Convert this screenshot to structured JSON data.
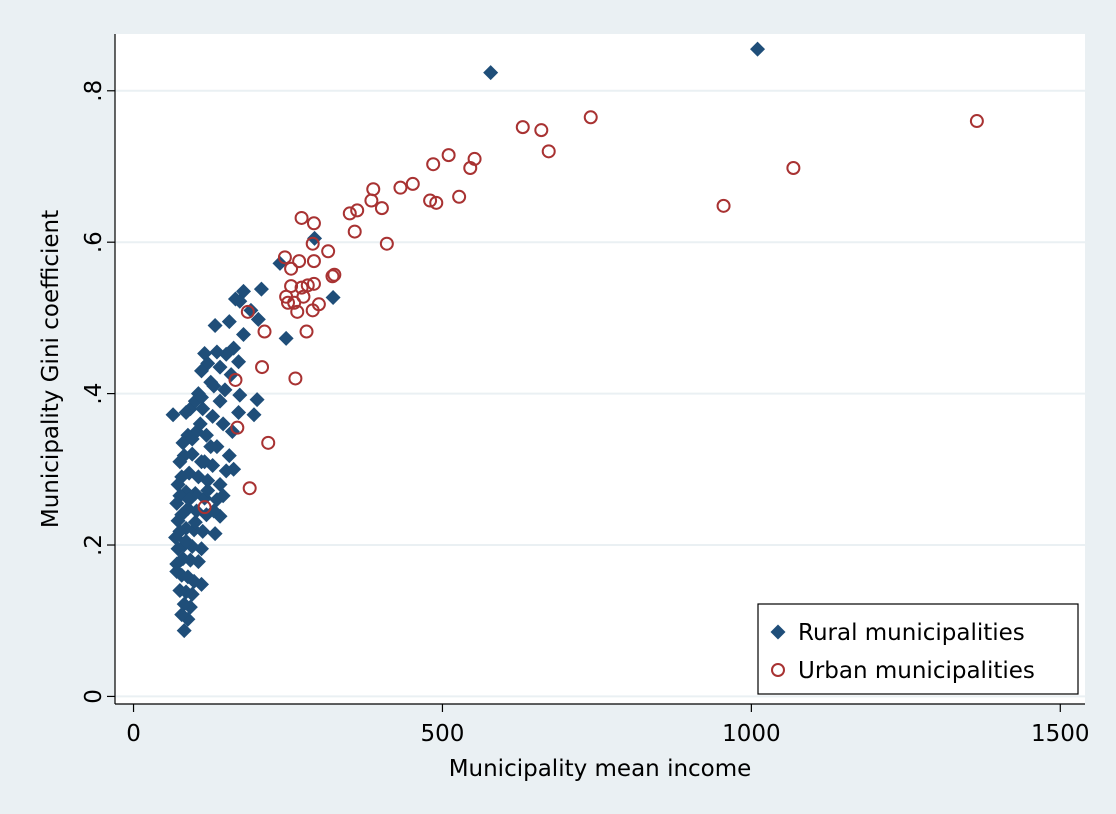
{
  "chart_data": {
    "type": "scatter",
    "title": "",
    "xlabel": "Municipality mean income",
    "ylabel": "Municipality Gini coefficient",
    "xlim": [
      -30,
      1540
    ],
    "ylim": [
      -0.01,
      0.875
    ],
    "xticks": [
      {
        "value": 0,
        "label": "0"
      },
      {
        "value": 500,
        "label": "500"
      },
      {
        "value": 1000,
        "label": "1000"
      },
      {
        "value": 1500,
        "label": "1500"
      }
    ],
    "yticks": [
      {
        "value": 0,
        "label": "0"
      },
      {
        "value": 0.2,
        "label": ".2"
      },
      {
        "value": 0.4,
        "label": ".4"
      },
      {
        "value": 0.6,
        "label": ".6"
      },
      {
        "value": 0.8,
        "label": ".8"
      }
    ],
    "grid": "horizontal",
    "legend_position": "bottom-right",
    "series": [
      {
        "name": "Rural municipalities",
        "marker": "diamond",
        "color": "#1f4e79",
        "points": [
          [
            1010,
            0.855
          ],
          [
            578,
            0.824
          ],
          [
            293,
            0.605
          ],
          [
            237,
            0.572
          ],
          [
            323,
            0.527
          ],
          [
            247,
            0.473
          ],
          [
            207,
            0.538
          ],
          [
            178,
            0.535
          ],
          [
            190,
            0.51
          ],
          [
            202,
            0.498
          ],
          [
            172,
            0.522
          ],
          [
            165,
            0.525
          ],
          [
            178,
            0.478
          ],
          [
            155,
            0.495
          ],
          [
            132,
            0.49
          ],
          [
            162,
            0.46
          ],
          [
            150,
            0.452
          ],
          [
            135,
            0.455
          ],
          [
            115,
            0.453
          ],
          [
            170,
            0.442
          ],
          [
            158,
            0.425
          ],
          [
            140,
            0.435
          ],
          [
            120,
            0.44
          ],
          [
            110,
            0.43
          ],
          [
            172,
            0.398
          ],
          [
            200,
            0.392
          ],
          [
            195,
            0.372
          ],
          [
            170,
            0.375
          ],
          [
            148,
            0.405
          ],
          [
            130,
            0.41
          ],
          [
            64,
            0.372
          ],
          [
            105,
            0.4
          ],
          [
            92,
            0.38
          ],
          [
            85,
            0.375
          ],
          [
            160,
            0.35
          ],
          [
            145,
            0.36
          ],
          [
            128,
            0.37
          ],
          [
            112,
            0.38
          ],
          [
            100,
            0.39
          ],
          [
            155,
            0.318
          ],
          [
            135,
            0.33
          ],
          [
            118,
            0.345
          ],
          [
            102,
            0.35
          ],
          [
            88,
            0.345
          ],
          [
            80,
            0.335
          ],
          [
            150,
            0.298
          ],
          [
            128,
            0.305
          ],
          [
            110,
            0.31
          ],
          [
            95,
            0.32
          ],
          [
            82,
            0.318
          ],
          [
            75,
            0.31
          ],
          [
            140,
            0.28
          ],
          [
            120,
            0.285
          ],
          [
            105,
            0.29
          ],
          [
            90,
            0.295
          ],
          [
            78,
            0.29
          ],
          [
            72,
            0.28
          ],
          [
            135,
            0.26
          ],
          [
            115,
            0.262
          ],
          [
            100,
            0.268
          ],
          [
            85,
            0.27
          ],
          [
            75,
            0.265
          ],
          [
            70,
            0.255
          ],
          [
            140,
            0.238
          ],
          [
            118,
            0.24
          ],
          [
            102,
            0.245
          ],
          [
            88,
            0.248
          ],
          [
            78,
            0.24
          ],
          [
            72,
            0.232
          ],
          [
            132,
            0.215
          ],
          [
            112,
            0.218
          ],
          [
            98,
            0.22
          ],
          [
            85,
            0.222
          ],
          [
            75,
            0.218
          ],
          [
            68,
            0.21
          ],
          [
            110,
            0.195
          ],
          [
            95,
            0.198
          ],
          [
            82,
            0.2
          ],
          [
            72,
            0.195
          ],
          [
            105,
            0.178
          ],
          [
            92,
            0.18
          ],
          [
            80,
            0.182
          ],
          [
            70,
            0.175
          ],
          [
            110,
            0.148
          ],
          [
            98,
            0.152
          ],
          [
            88,
            0.158
          ],
          [
            78,
            0.16
          ],
          [
            70,
            0.165
          ],
          [
            95,
            0.135
          ],
          [
            85,
            0.138
          ],
          [
            75,
            0.14
          ],
          [
            92,
            0.118
          ],
          [
            82,
            0.122
          ],
          [
            88,
            0.102
          ],
          [
            78,
            0.108
          ],
          [
            82,
            0.087
          ],
          [
            145,
            0.265
          ],
          [
            162,
            0.3
          ],
          [
            125,
            0.33
          ],
          [
            108,
            0.36
          ],
          [
            95,
            0.34
          ],
          [
            120,
            0.272
          ],
          [
            130,
            0.245
          ],
          [
            90,
            0.26
          ],
          [
            100,
            0.23
          ],
          [
            85,
            0.205
          ],
          [
            115,
            0.31
          ],
          [
            140,
            0.39
          ],
          [
            125,
            0.415
          ],
          [
            110,
            0.395
          ]
        ]
      },
      {
        "name": "Urban municipalities",
        "marker": "hollow-circle",
        "color": "#a83232",
        "points": [
          [
            1365,
            0.76
          ],
          [
            1068,
            0.698
          ],
          [
            955,
            0.648
          ],
          [
            740,
            0.765
          ],
          [
            630,
            0.752
          ],
          [
            660,
            0.748
          ],
          [
            672,
            0.72
          ],
          [
            510,
            0.715
          ],
          [
            552,
            0.71
          ],
          [
            485,
            0.703
          ],
          [
            545,
            0.698
          ],
          [
            452,
            0.677
          ],
          [
            432,
            0.672
          ],
          [
            388,
            0.67
          ],
          [
            480,
            0.655
          ],
          [
            490,
            0.652
          ],
          [
            527,
            0.66
          ],
          [
            362,
            0.642
          ],
          [
            350,
            0.638
          ],
          [
            402,
            0.645
          ],
          [
            385,
            0.655
          ],
          [
            272,
            0.632
          ],
          [
            292,
            0.625
          ],
          [
            358,
            0.614
          ],
          [
            410,
            0.598
          ],
          [
            290,
            0.598
          ],
          [
            315,
            0.588
          ],
          [
            245,
            0.58
          ],
          [
            255,
            0.565
          ],
          [
            268,
            0.575
          ],
          [
            292,
            0.575
          ],
          [
            322,
            0.555
          ],
          [
            325,
            0.557
          ],
          [
            255,
            0.542
          ],
          [
            272,
            0.54
          ],
          [
            282,
            0.543
          ],
          [
            292,
            0.545
          ],
          [
            247,
            0.528
          ],
          [
            250,
            0.52
          ],
          [
            260,
            0.52
          ],
          [
            275,
            0.528
          ],
          [
            290,
            0.51
          ],
          [
            265,
            0.508
          ],
          [
            300,
            0.518
          ],
          [
            185,
            0.508
          ],
          [
            212,
            0.482
          ],
          [
            280,
            0.482
          ],
          [
            208,
            0.435
          ],
          [
            262,
            0.42
          ],
          [
            165,
            0.418
          ],
          [
            168,
            0.355
          ],
          [
            218,
            0.335
          ],
          [
            188,
            0.275
          ],
          [
            115,
            0.25
          ]
        ]
      }
    ]
  }
}
